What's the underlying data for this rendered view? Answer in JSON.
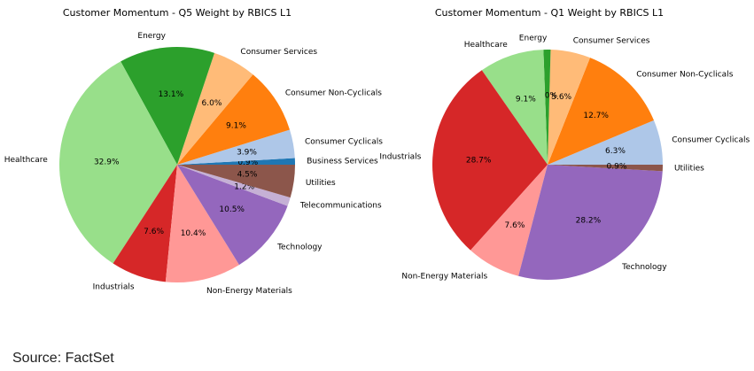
{
  "chart_data": [
    {
      "type": "pie",
      "title": "Customer Momentum - Q5 Weight by RBICS L1",
      "categories": [
        "Business Services",
        "Consumer Cyclicals",
        "Consumer Non-Cyclicals",
        "Consumer Services",
        "Energy",
        "Healthcare",
        "Industrials",
        "Non-Energy Materials",
        "Technology",
        "Telecommunications",
        "Utilities"
      ],
      "values": [
        0.9,
        3.9,
        9.1,
        6.0,
        13.1,
        32.9,
        7.6,
        10.4,
        10.5,
        1.2,
        4.5
      ],
      "value_labels": [
        "0.9%",
        "3.9%",
        "9.1%",
        "6.0%",
        "13.1%",
        "32.9%",
        "7.6%",
        "10.4%",
        "10.5%",
        "1.2%",
        "4.5%"
      ],
      "colors": [
        "#1f77b4",
        "#aec7e8",
        "#ff7f0e",
        "#ffbb78",
        "#2ca02c",
        "#98df8a",
        "#d62728",
        "#ff9896",
        "#9467bd",
        "#c5b0d5",
        "#8c564b"
      ]
    },
    {
      "type": "pie",
      "title": "Customer Momentum - Q1 Weight by RBICS L1",
      "categories": [
        "Consumer Cyclicals",
        "Consumer Non-Cyclicals",
        "Consumer Services",
        "Energy",
        "Healthcare",
        "Industrials",
        "Non-Energy Materials",
        "Technology",
        "Utilities"
      ],
      "values": [
        6.3,
        12.7,
        5.6,
        1.0,
        9.1,
        28.7,
        7.6,
        28.2,
        0.9
      ],
      "value_labels": [
        "6.3%",
        "12.7%",
        "5.6%",
        "1.0%",
        "9.1%",
        "28.7%",
        "7.6%",
        "28.2%",
        "0.9%"
      ],
      "colors": [
        "#aec7e8",
        "#ff7f0e",
        "#ffbb78",
        "#2ca02c",
        "#98df8a",
        "#d62728",
        "#ff9896",
        "#9467bd",
        "#8c564b"
      ]
    }
  ],
  "source": "Source: FactSet"
}
